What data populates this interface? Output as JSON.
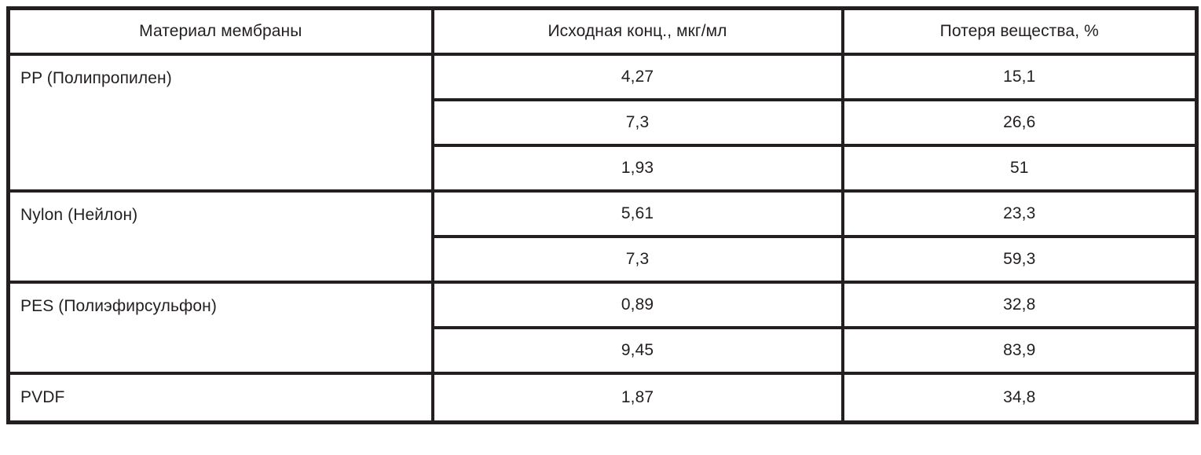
{
  "table": {
    "title_semantic": "membrane-material-substance-loss-table",
    "colors": {
      "border": "#231f20",
      "text": "#231f20",
      "background": "#ffffff"
    },
    "headers": [
      "Материал мембраны",
      "Исходная конц., мкг/мл",
      "Потеря вещества, %"
    ],
    "groups": [
      {
        "material": "PP (Полипропилен)",
        "rows": [
          {
            "concentration": "4,27",
            "loss": "15,1"
          },
          {
            "concentration": "7,3",
            "loss": "26,6"
          },
          {
            "concentration": "1,93",
            "loss": "51"
          }
        ]
      },
      {
        "material": "Nylon (Нейлон)",
        "rows": [
          {
            "concentration": "5,61",
            "loss": "23,3"
          },
          {
            "concentration": "7,3",
            "loss": "59,3"
          }
        ]
      },
      {
        "material": "PES (Полиэфирсульфон)",
        "rows": [
          {
            "concentration": "0,89",
            "loss": "32,8"
          },
          {
            "concentration": "9,45",
            "loss": "83,9"
          }
        ]
      },
      {
        "material": "PVDF",
        "rows": [
          {
            "concentration": "1,87",
            "loss": "34,8"
          }
        ]
      }
    ]
  }
}
